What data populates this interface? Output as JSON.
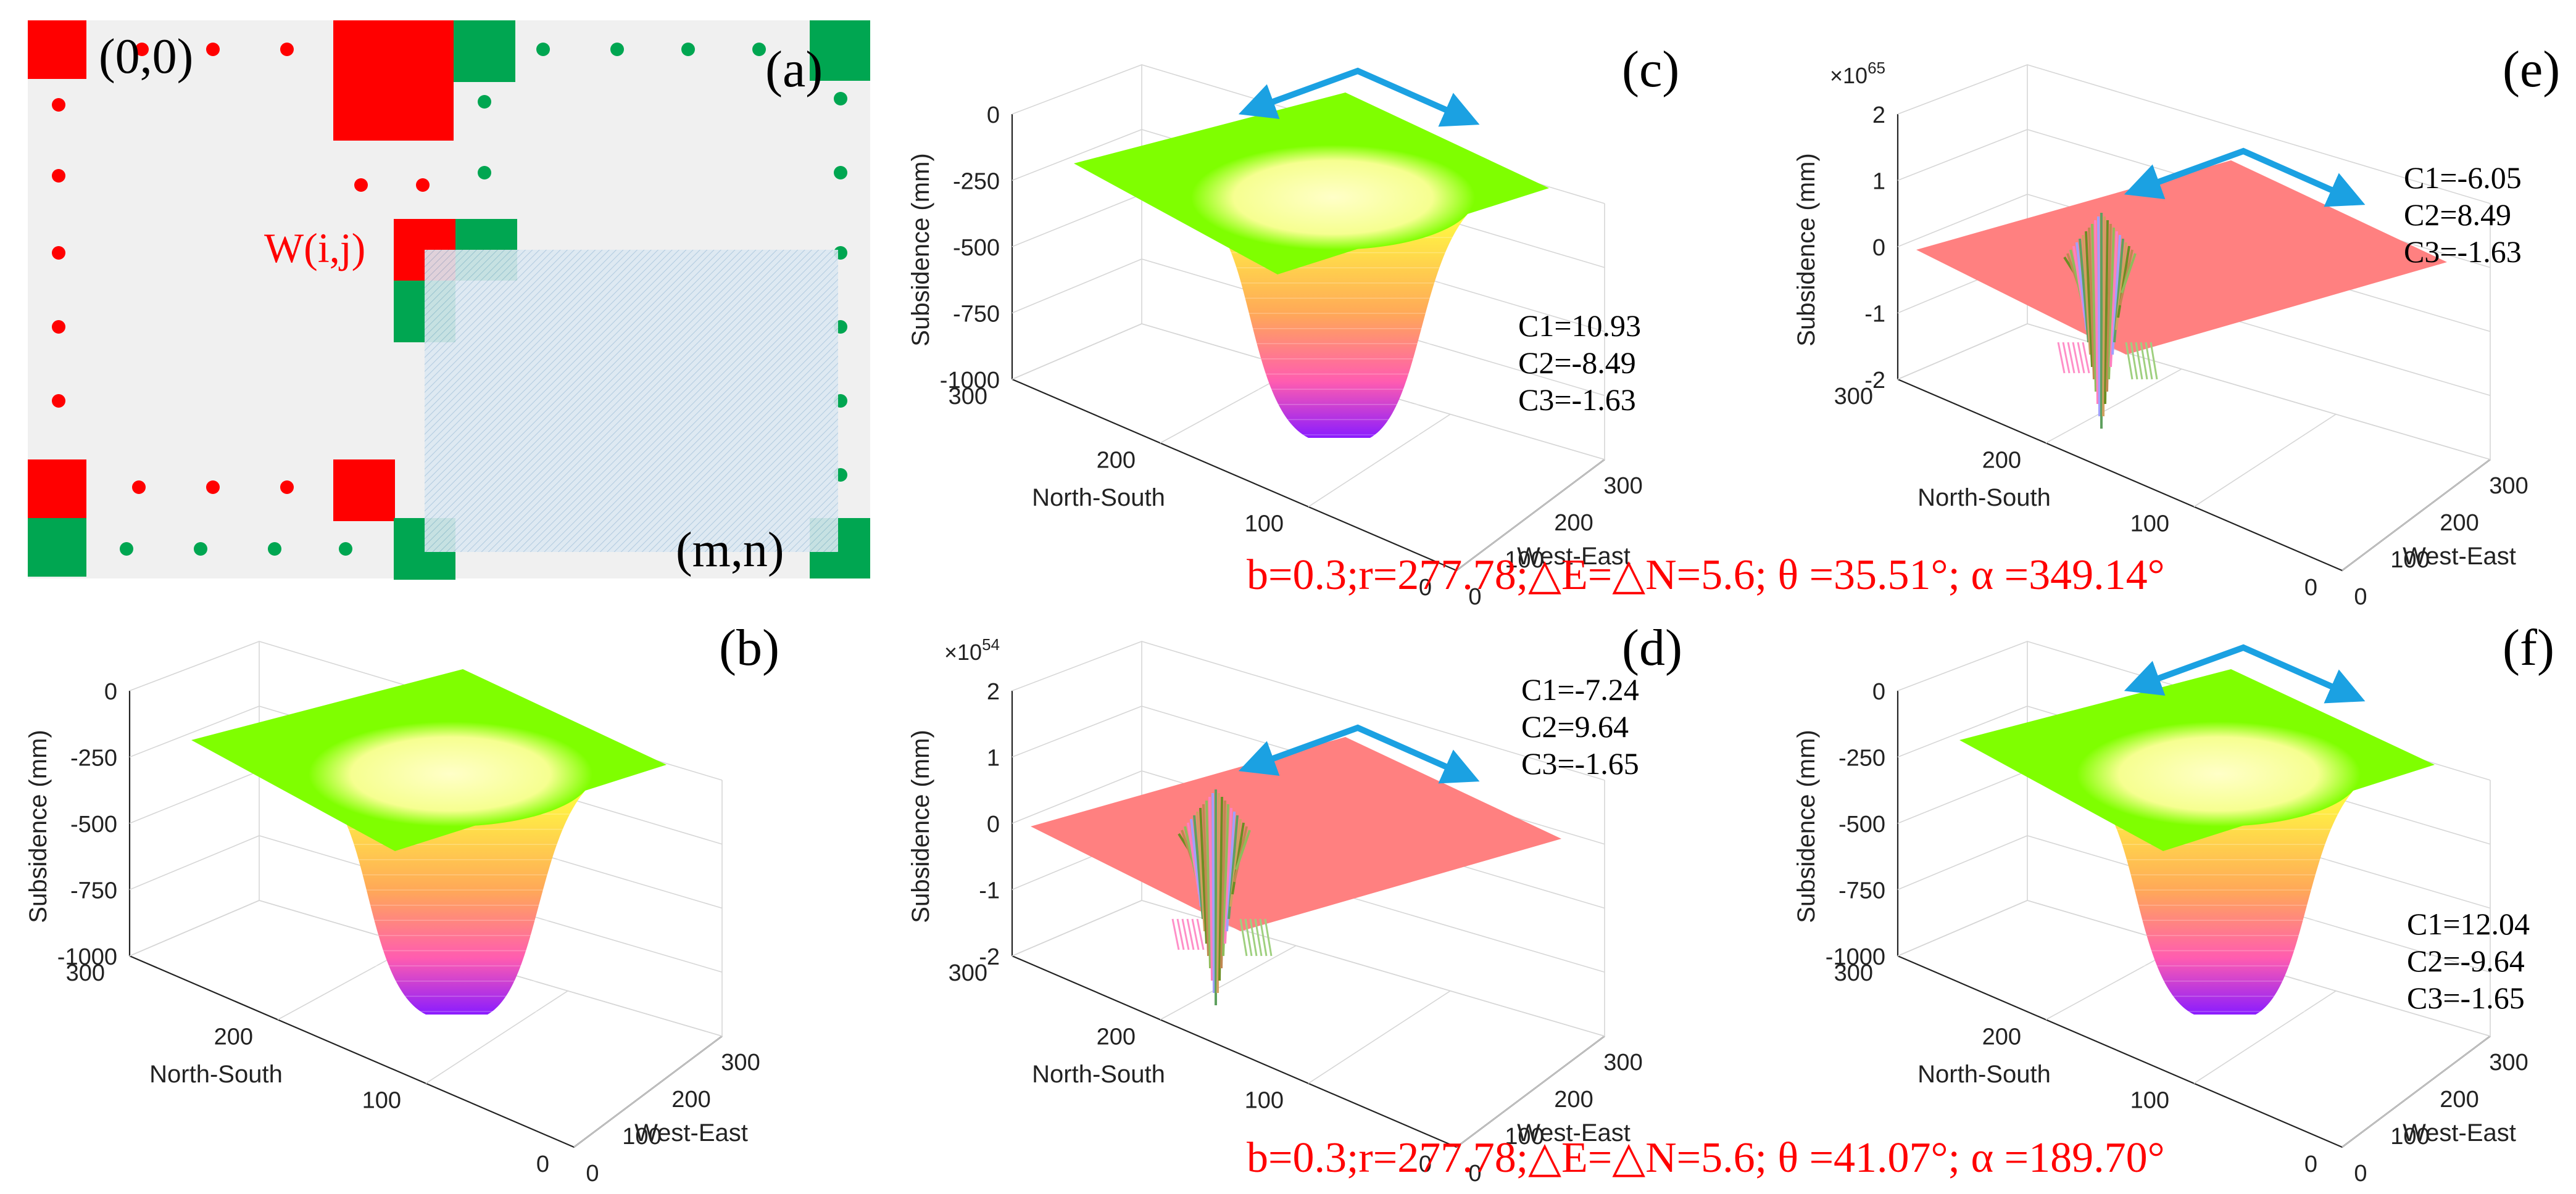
{
  "figure": {
    "panel_labels": {
      "a": "(a)",
      "b": "(b)",
      "c": "(c)",
      "d": "(d)",
      "e": "(e)",
      "f": "(f)"
    },
    "caption_top": "b=0.3;r=277.78;△E=△N=5.6; θ =35.51°; α =349.14°",
    "caption_bottom": "b=0.3;r=277.78;△E=△N=5.6; θ =41.07°; α =189.70°",
    "colors": {
      "window_red": "#ff0000",
      "window_green": "#00a651",
      "plane_green": "#7fff00",
      "plane_red": "#ff8080",
      "arrow_blue": "#1ba1e2",
      "caption_red": "#ff0000"
    }
  },
  "diagram": {
    "origin_label": "(0,0)",
    "end_label": "(m,n)",
    "window_label": "W(i,j)"
  },
  "chart_data": [
    {
      "panel": "b",
      "type": "surface3d",
      "surface": "subsidence-basin",
      "zlabel": "Subsidence (mm)",
      "xlabel": "West-East",
      "ylabel": "North-South",
      "zticks": [
        "0",
        "-250",
        "-500",
        "-750",
        "-1000"
      ],
      "xticks": [
        "0",
        "100",
        "200",
        "300"
      ],
      "yticks": [
        "0",
        "100",
        "200",
        "300"
      ],
      "zlim": [
        -1000,
        0
      ],
      "xlim": [
        0,
        300
      ],
      "ylim": [
        0,
        300
      ],
      "max_subsidence": -1000,
      "exponent": "",
      "coefficients": [],
      "arrow": false
    },
    {
      "panel": "c",
      "type": "surface3d",
      "surface": "subsidence-basin",
      "zlabel": "Subsidence (mm)",
      "xlabel": "West-East",
      "ylabel": "North-South",
      "zticks": [
        "0",
        "-250",
        "-500",
        "-750",
        "-1000"
      ],
      "xticks": [
        "0",
        "100",
        "200",
        "300"
      ],
      "yticks": [
        "0",
        "100",
        "200",
        "300"
      ],
      "zlim": [
        -1000,
        0
      ],
      "xlim": [
        0,
        300
      ],
      "ylim": [
        0,
        300
      ],
      "max_subsidence": -1000,
      "exponent": "",
      "coefficients": [
        "C1=10.93",
        "C2=-8.49",
        "C3=-1.63"
      ],
      "arrow": true
    },
    {
      "panel": "d",
      "type": "surface3d",
      "surface": "oscillating-spike",
      "zlabel": "Subsidence (mm)",
      "xlabel": "West-East",
      "ylabel": "North-South",
      "zticks": [
        "2",
        "1",
        "0",
        "-1",
        "-2"
      ],
      "xticks": [
        "0",
        "100",
        "200",
        "300"
      ],
      "yticks": [
        "0",
        "100",
        "200",
        "300"
      ],
      "zlim": [
        -2,
        2
      ],
      "xlim": [
        0,
        300
      ],
      "ylim": [
        0,
        300
      ],
      "exponent": "54",
      "coefficients": [
        "C1=-7.24",
        "C2=9.64",
        "C3=-1.65"
      ],
      "arrow": true
    },
    {
      "panel": "e",
      "type": "surface3d",
      "surface": "oscillating-spike",
      "zlabel": "Subsidence (mm)",
      "xlabel": "West-East",
      "ylabel": "North-South",
      "zticks": [
        "2",
        "1",
        "0",
        "-1",
        "-2"
      ],
      "xticks": [
        "0",
        "100",
        "200",
        "300"
      ],
      "yticks": [
        "0",
        "100",
        "200",
        "300"
      ],
      "zlim": [
        -2,
        2
      ],
      "xlim": [
        0,
        300
      ],
      "ylim": [
        0,
        300
      ],
      "exponent": "65",
      "coefficients": [
        "C1=-6.05",
        "C2=8.49",
        "C3=-1.63"
      ],
      "arrow": true
    },
    {
      "panel": "f",
      "type": "surface3d",
      "surface": "subsidence-basin",
      "zlabel": "Subsidence (mm)",
      "xlabel": "West-East",
      "ylabel": "North-South",
      "zticks": [
        "0",
        "-250",
        "-500",
        "-750",
        "-1000"
      ],
      "xticks": [
        "0",
        "100",
        "200",
        "300"
      ],
      "yticks": [
        "0",
        "100",
        "200",
        "300"
      ],
      "zlim": [
        -1000,
        0
      ],
      "xlim": [
        0,
        300
      ],
      "ylim": [
        0,
        300
      ],
      "max_subsidence": -1000,
      "exponent": "",
      "coefficients": [
        "C1=12.04",
        "C2=-9.64",
        "C3=-1.65"
      ],
      "arrow": true
    }
  ]
}
